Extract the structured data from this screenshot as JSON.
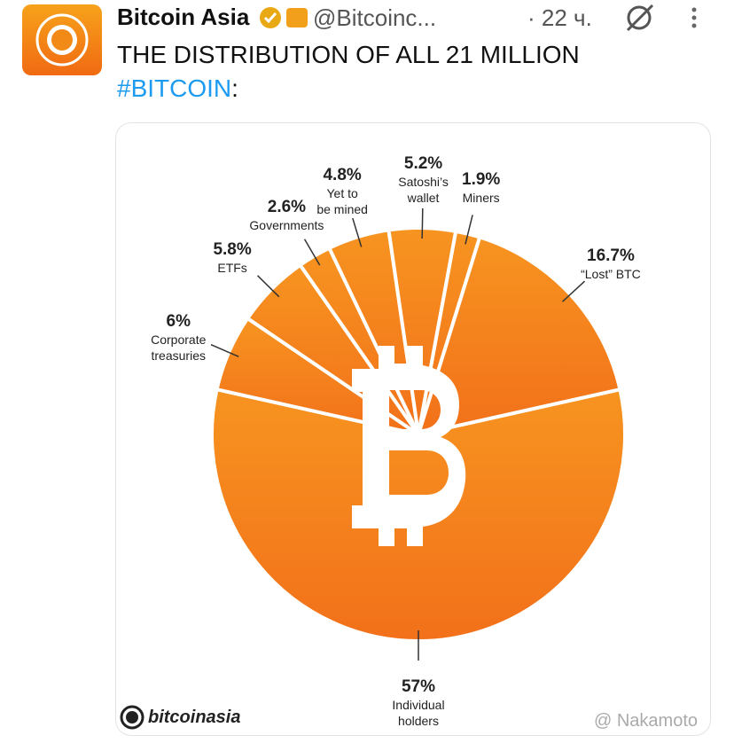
{
  "tweet": {
    "author": "Bitcoin Asia",
    "handle": "@Bitcoinc...",
    "time": "· 22 ч.",
    "text": "THE DISTRIBUTION OF ALL 21 MILLION",
    "hashtag": "#BITCOIN",
    "punctuation": ":"
  },
  "chart_data": {
    "type": "pie",
    "categories": [
      "Individual\nholders",
      "Corporate\ntreasuries",
      "ETFs",
      "Governments",
      "Yet to\nbe mined",
      "Satoshi’s\nwallet",
      "Miners",
      "“Lost” BTC"
    ],
    "values": [
      57,
      6,
      5.8,
      2.6,
      4.8,
      5.2,
      1.9,
      16.7
    ],
    "value_labels": [
      "57%",
      "6%",
      "5.8%",
      "2.6%",
      "4.8%",
      "5.2%",
      "1.9%",
      "16.7%"
    ],
    "color": "#f7891c"
  },
  "brand": "bitcoinasia",
  "watermark": "@ Nakamoto"
}
